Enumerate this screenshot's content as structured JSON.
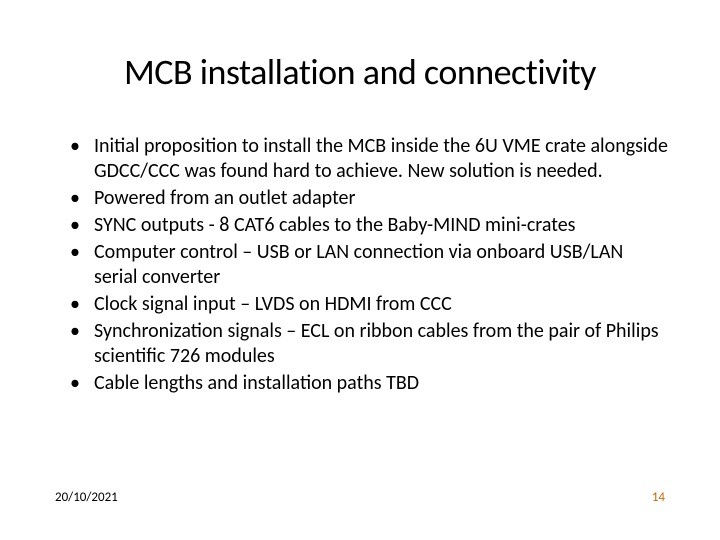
{
  "slide": {
    "title": "MCB installation and connectivity",
    "bullets": [
      "Initial proposition to install the MCB inside the 6U VME crate alongside GDCC/CCC was found hard to achieve. New solution is needed.",
      "Powered from an outlet adapter",
      "SYNC outputs - 8 CAT6 cables to the Baby-MIND mini-crates",
      "Computer control – USB or LAN connection via onboard USB/LAN serial converter",
      "Clock signal input – LVDS on HDMI from CCC",
      "Synchronization signals – ECL on ribbon cables from the pair of Philips scientific 726 modules",
      "Cable lengths and installation paths TBD"
    ]
  },
  "footer": {
    "date": "20/10/2021",
    "page": "14"
  },
  "styling": {
    "title_fontsize": 36,
    "title_color": "#000000",
    "bullet_fontsize": 20,
    "bullet_color": "#000000",
    "footer_fontsize": 13,
    "footer_date_color": "#000000",
    "footer_page_color": "#cc6600",
    "background_color": "#ffffff",
    "font_family": "Calibri"
  }
}
